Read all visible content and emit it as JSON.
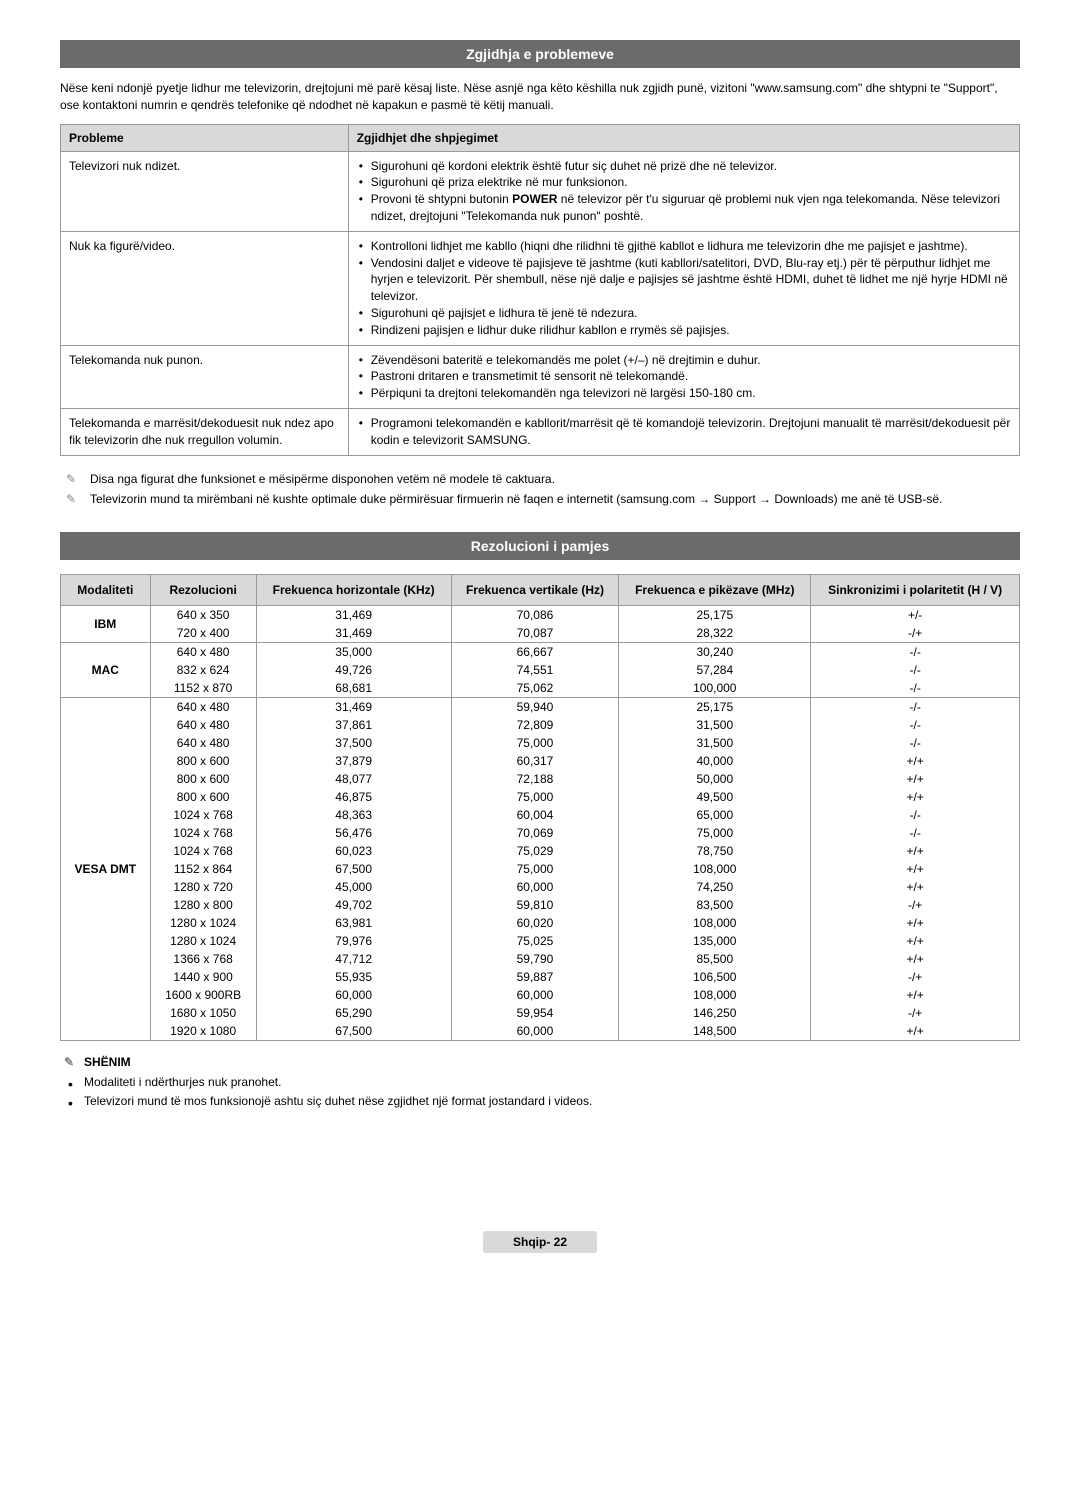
{
  "section1": {
    "title": "Zgjidhja e problemeve",
    "intro": "Nëse keni ndonjë pyetje lidhur me televizorin, drejtojuni më parë kësaj liste. Nëse asnjë nga këto këshilla nuk zgjidh punë, vizitoni \"www.samsung.com\" dhe shtypni te \"Support\", ose kontaktoni numrin e qendrës telefonike që ndodhet në kapakun e pasmë të këtij manuali.",
    "headers": {
      "c1": "Probleme",
      "c2": "Zgjidhjet dhe shpjegimet"
    },
    "rows": [
      {
        "problem": "Televizori nuk ndizet.",
        "solutions": [
          "Sigurohuni që kordoni elektrik është futur siç duhet në prizë dhe në televizor.",
          "Sigurohuni që priza elektrike në mur funksionon.",
          "Provoni të shtypni butonin POWER në televizor për t'u siguruar që problemi nuk vjen nga telekomanda. Nëse televizori ndizet, drejtojuni \"Telekomanda nuk punon\" poshtë."
        ]
      },
      {
        "problem": "Nuk ka figurë/video.",
        "solutions": [
          "Kontrolloni lidhjet me kabllo (hiqni dhe rilidhni të gjithë kabllot e lidhura me televizorin dhe me pajisjet e jashtme).",
          "Vendosini daljet e videove të pajisjeve të jashtme (kuti kabllori/satelitori, DVD, Blu-ray etj.) për të përputhur lidhjet me hyrjen e televizorit. Për shembull, nëse një dalje e pajisjes së jashtme është HDMI, duhet të lidhet me një hyrje HDMI në televizor.",
          "Sigurohuni që pajisjet e lidhura të jenë të ndezura.",
          "Rindizeni pajisjen e lidhur duke rilidhur kabllon e rrymës së pajisjes."
        ]
      },
      {
        "problem": "Telekomanda nuk punon.",
        "solutions": [
          "Zëvendësoni bateritë e telekomandës me polet (+/–) në drejtimin e duhur.",
          "Pastroni dritaren e transmetimit të sensorit në telekomandë.",
          "Përpiquni ta drejtoni telekomandën nga televizori në largësi 150-180 cm."
        ]
      },
      {
        "problem": "Telekomanda e marrësit/dekoduesit nuk ndez apo fik televizorin dhe nuk rregullon volumin.",
        "solutions": [
          "Programoni telekomandën e kabllorit/marrësit që të komandojë televizorin. Drejtojuni manualit të marrësit/dekoduesit për kodin e televizorit SAMSUNG."
        ]
      }
    ],
    "notes": [
      "Disa nga figurat dhe funksionet e mësipërme disponohen vetëm në modele të caktuara.",
      "Televizorin mund ta mirëmbani në kushte optimale duke përmirësuar firmuerin në faqen e internetit (samsung.com → Support → Downloads) me anë të USB-së."
    ]
  },
  "section2": {
    "title": "Rezolucioni i pamjes",
    "headers": {
      "c1": "Modaliteti",
      "c2": "Rezolucioni",
      "c3": "Frekuenca horizontale (KHz)",
      "c4": "Frekuenca vertikale (Hz)",
      "c5": "Frekuenca e pikëzave (MHz)",
      "c6": "Sinkronizimi i polaritetit (H / V)"
    },
    "groups": [
      {
        "mode": "IBM",
        "rows": [
          {
            "res": "640 x 350",
            "h": "31,469",
            "v": "70,086",
            "p": "25,175",
            "s": "+/-"
          },
          {
            "res": "720 x 400",
            "h": "31,469",
            "v": "70,087",
            "p": "28,322",
            "s": "-/+"
          }
        ]
      },
      {
        "mode": "MAC",
        "rows": [
          {
            "res": "640 x 480",
            "h": "35,000",
            "v": "66,667",
            "p": "30,240",
            "s": "-/-"
          },
          {
            "res": "832 x 624",
            "h": "49,726",
            "v": "74,551",
            "p": "57,284",
            "s": "-/-"
          },
          {
            "res": "1152 x 870",
            "h": "68,681",
            "v": "75,062",
            "p": "100,000",
            "s": "-/-"
          }
        ]
      },
      {
        "mode": "VESA DMT",
        "rows": [
          {
            "res": "640 x 480",
            "h": "31,469",
            "v": "59,940",
            "p": "25,175",
            "s": "-/-"
          },
          {
            "res": "640 x 480",
            "h": "37,861",
            "v": "72,809",
            "p": "31,500",
            "s": "-/-"
          },
          {
            "res": "640 x 480",
            "h": "37,500",
            "v": "75,000",
            "p": "31,500",
            "s": "-/-"
          },
          {
            "res": "800 x 600",
            "h": "37,879",
            "v": "60,317",
            "p": "40,000",
            "s": "+/+"
          },
          {
            "res": "800 x 600",
            "h": "48,077",
            "v": "72,188",
            "p": "50,000",
            "s": "+/+"
          },
          {
            "res": "800 x 600",
            "h": "46,875",
            "v": "75,000",
            "p": "49,500",
            "s": "+/+"
          },
          {
            "res": "1024 x 768",
            "h": "48,363",
            "v": "60,004",
            "p": "65,000",
            "s": "-/-"
          },
          {
            "res": "1024 x 768",
            "h": "56,476",
            "v": "70,069",
            "p": "75,000",
            "s": "-/-"
          },
          {
            "res": "1024 x 768",
            "h": "60,023",
            "v": "75,029",
            "p": "78,750",
            "s": "+/+"
          },
          {
            "res": "1152 x 864",
            "h": "67,500",
            "v": "75,000",
            "p": "108,000",
            "s": "+/+"
          },
          {
            "res": "1280 x 720",
            "h": "45,000",
            "v": "60,000",
            "p": "74,250",
            "s": "+/+"
          },
          {
            "res": "1280 x 800",
            "h": "49,702",
            "v": "59,810",
            "p": "83,500",
            "s": "-/+"
          },
          {
            "res": "1280 x 1024",
            "h": "63,981",
            "v": "60,020",
            "p": "108,000",
            "s": "+/+"
          },
          {
            "res": "1280 x 1024",
            "h": "79,976",
            "v": "75,025",
            "p": "135,000",
            "s": "+/+"
          },
          {
            "res": "1366 x 768",
            "h": "47,712",
            "v": "59,790",
            "p": "85,500",
            "s": "+/+"
          },
          {
            "res": "1440 x 900",
            "h": "55,935",
            "v": "59,887",
            "p": "106,500",
            "s": "-/+"
          },
          {
            "res": "1600 x 900RB",
            "h": "60,000",
            "v": "60,000",
            "p": "108,000",
            "s": "+/+"
          },
          {
            "res": "1680 x 1050",
            "h": "65,290",
            "v": "59,954",
            "p": "146,250",
            "s": "-/+"
          },
          {
            "res": "1920 x 1080",
            "h": "67,500",
            "v": "60,000",
            "p": "148,500",
            "s": "+/+"
          }
        ]
      }
    ],
    "shenim_label": "SHËNIM",
    "shenim_items": [
      "Modaliteti i ndërthurjes nuk pranohet.",
      "Televizori mund të mos funksionojë ashtu siç duhet nëse zgjidhet një format jostandard i videos."
    ]
  },
  "footer": "Shqip- 22"
}
